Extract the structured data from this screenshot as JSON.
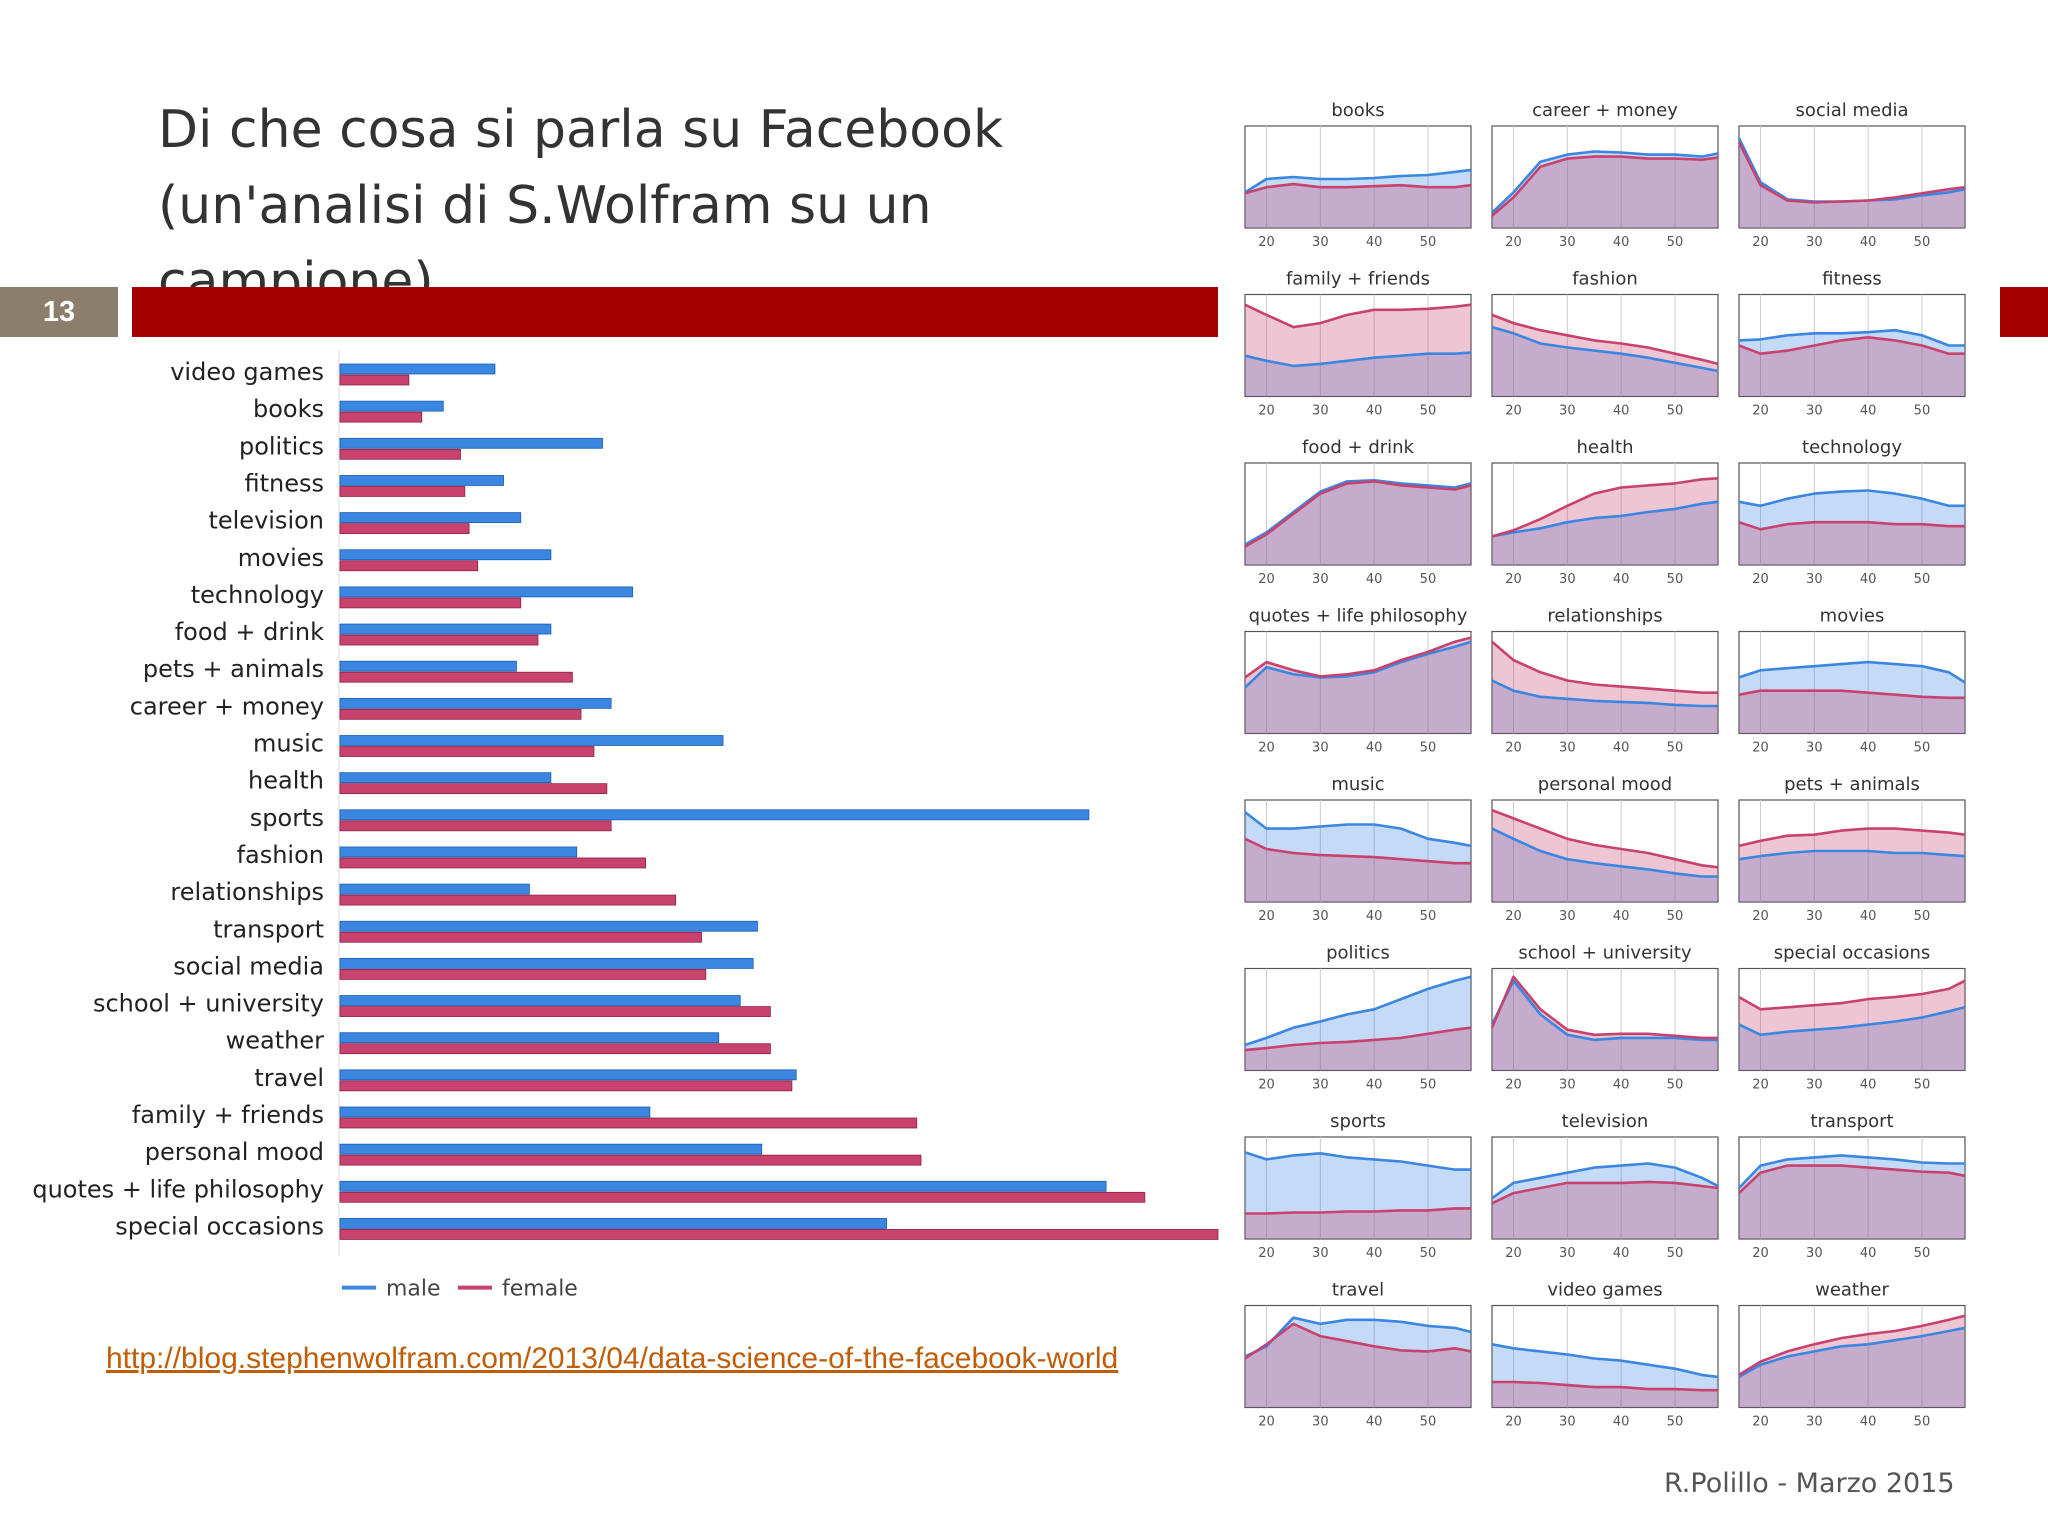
{
  "slide": {
    "title_line1": "Di che cosa si parla su Facebook",
    "title_line2": "(un'analisi di S.Wolfram su un campione)",
    "number": "13",
    "link": "http://blog.stephenwolfram.com/2013/04/data-science-of-the-facebook-world",
    "footer": "R.Polillo - Marzo 2015",
    "colors": {
      "male": "#3a86e0",
      "female": "#c8426e",
      "accent": "#a50000",
      "badge": "#8c7e6c"
    }
  },
  "chart_data": [
    {
      "type": "bar",
      "orientation": "horizontal",
      "categories": [
        "video games",
        "books",
        "politics",
        "fitness",
        "television",
        "movies",
        "technology",
        "food + drink",
        "pets + animals",
        "career + money",
        "music",
        "health",
        "sports",
        "fashion",
        "relationships",
        "transport",
        "social media",
        "school + university",
        "weather",
        "travel",
        "family + friends",
        "personal mood",
        "quotes + life philosophy",
        "special occasions"
      ],
      "series": [
        {
          "name": "male",
          "values": [
            18.0,
            12.0,
            30.5,
            19.0,
            21.0,
            24.5,
            34.0,
            24.5,
            20.5,
            31.5,
            44.5,
            24.5,
            87.0,
            27.5,
            22.0,
            48.5,
            48.0,
            46.5,
            44.0,
            53.0,
            36.0,
            49.0,
            89.0,
            63.5
          ]
        },
        {
          "name": "female",
          "values": [
            8.0,
            9.5,
            14.0,
            14.5,
            15.0,
            16.0,
            21.0,
            23.0,
            27.0,
            28.0,
            29.5,
            31.0,
            31.5,
            35.5,
            39.0,
            42.0,
            42.5,
            50.0,
            50.0,
            52.5,
            67.0,
            67.5,
            93.5,
            102.0
          ]
        }
      ],
      "xlim": [
        0,
        102
      ],
      "legend": "bottom-left"
    },
    {
      "type": "area",
      "layout": "small multiples 3 x 8",
      "x": [
        16,
        20,
        25,
        30,
        35,
        40,
        45,
        50,
        55,
        58
      ],
      "xticks": [
        20,
        30,
        40,
        50
      ],
      "panels": [
        {
          "title": "books",
          "male": [
            0.35,
            0.48,
            0.5,
            0.48,
            0.48,
            0.49,
            0.51,
            0.52,
            0.55,
            0.57
          ],
          "female": [
            0.34,
            0.4,
            0.43,
            0.4,
            0.4,
            0.41,
            0.42,
            0.4,
            0.4,
            0.42
          ]
        },
        {
          "title": "career + money",
          "male": [
            0.15,
            0.35,
            0.65,
            0.72,
            0.75,
            0.74,
            0.72,
            0.72,
            0.7,
            0.73
          ],
          "female": [
            0.12,
            0.3,
            0.6,
            0.68,
            0.7,
            0.7,
            0.68,
            0.68,
            0.67,
            0.69
          ]
        },
        {
          "title": "social media",
          "male": [
            0.88,
            0.45,
            0.28,
            0.26,
            0.26,
            0.27,
            0.28,
            0.32,
            0.35,
            0.38
          ],
          "female": [
            0.84,
            0.42,
            0.27,
            0.25,
            0.26,
            0.27,
            0.3,
            0.34,
            0.38,
            0.4
          ]
        },
        {
          "title": "family + friends",
          "male": [
            0.4,
            0.35,
            0.3,
            0.32,
            0.35,
            0.38,
            0.4,
            0.42,
            0.42,
            0.43
          ],
          "female": [
            0.9,
            0.8,
            0.68,
            0.72,
            0.8,
            0.85,
            0.85,
            0.86,
            0.88,
            0.9
          ]
        },
        {
          "title": "fashion",
          "male": [
            0.68,
            0.62,
            0.52,
            0.48,
            0.45,
            0.42,
            0.38,
            0.33,
            0.28,
            0.25
          ],
          "female": [
            0.8,
            0.72,
            0.65,
            0.6,
            0.55,
            0.52,
            0.48,
            0.42,
            0.36,
            0.32
          ]
        },
        {
          "title": "fitness",
          "male": [
            0.55,
            0.56,
            0.6,
            0.62,
            0.62,
            0.63,
            0.65,
            0.6,
            0.5,
            0.5
          ],
          "female": [
            0.5,
            0.42,
            0.45,
            0.5,
            0.55,
            0.58,
            0.55,
            0.5,
            0.42,
            0.42
          ]
        },
        {
          "title": "food + drink",
          "male": [
            0.2,
            0.32,
            0.52,
            0.72,
            0.82,
            0.83,
            0.8,
            0.78,
            0.76,
            0.8
          ],
          "female": [
            0.18,
            0.3,
            0.5,
            0.7,
            0.8,
            0.82,
            0.78,
            0.76,
            0.74,
            0.78
          ]
        },
        {
          "title": "health",
          "male": [
            0.28,
            0.32,
            0.36,
            0.42,
            0.46,
            0.48,
            0.52,
            0.55,
            0.6,
            0.62
          ],
          "female": [
            0.28,
            0.34,
            0.45,
            0.58,
            0.7,
            0.76,
            0.78,
            0.8,
            0.84,
            0.85
          ]
        },
        {
          "title": "technology",
          "male": [
            0.62,
            0.58,
            0.65,
            0.7,
            0.72,
            0.73,
            0.7,
            0.65,
            0.58,
            0.58
          ],
          "female": [
            0.42,
            0.35,
            0.4,
            0.42,
            0.42,
            0.42,
            0.4,
            0.4,
            0.38,
            0.38
          ]
        },
        {
          "title": "quotes + life philosophy",
          "male": [
            0.45,
            0.65,
            0.58,
            0.55,
            0.56,
            0.6,
            0.7,
            0.78,
            0.85,
            0.9
          ],
          "female": [
            0.55,
            0.7,
            0.62,
            0.56,
            0.58,
            0.62,
            0.72,
            0.8,
            0.9,
            0.94
          ]
        },
        {
          "title": "relationships",
          "male": [
            0.52,
            0.42,
            0.36,
            0.34,
            0.32,
            0.31,
            0.3,
            0.28,
            0.27,
            0.27
          ],
          "female": [
            0.9,
            0.72,
            0.6,
            0.52,
            0.48,
            0.46,
            0.44,
            0.42,
            0.4,
            0.4
          ]
        },
        {
          "title": "movies",
          "male": [
            0.55,
            0.62,
            0.64,
            0.66,
            0.68,
            0.7,
            0.68,
            0.66,
            0.6,
            0.5
          ],
          "female": [
            0.38,
            0.42,
            0.42,
            0.42,
            0.42,
            0.4,
            0.38,
            0.36,
            0.35,
            0.35
          ]
        },
        {
          "title": "music",
          "male": [
            0.88,
            0.72,
            0.72,
            0.74,
            0.76,
            0.76,
            0.72,
            0.62,
            0.58,
            0.55
          ],
          "female": [
            0.62,
            0.52,
            0.48,
            0.46,
            0.45,
            0.44,
            0.42,
            0.4,
            0.38,
            0.38
          ]
        },
        {
          "title": "personal mood",
          "male": [
            0.72,
            0.62,
            0.5,
            0.42,
            0.38,
            0.35,
            0.32,
            0.28,
            0.25,
            0.25
          ],
          "female": [
            0.9,
            0.82,
            0.72,
            0.62,
            0.56,
            0.52,
            0.48,
            0.42,
            0.36,
            0.34
          ]
        },
        {
          "title": "pets + animals",
          "male": [
            0.42,
            0.45,
            0.48,
            0.5,
            0.5,
            0.5,
            0.48,
            0.48,
            0.46,
            0.45
          ],
          "female": [
            0.55,
            0.6,
            0.65,
            0.66,
            0.7,
            0.72,
            0.72,
            0.7,
            0.68,
            0.66
          ]
        },
        {
          "title": "politics",
          "male": [
            0.25,
            0.32,
            0.42,
            0.48,
            0.55,
            0.6,
            0.7,
            0.8,
            0.88,
            0.92
          ],
          "female": [
            0.2,
            0.22,
            0.25,
            0.27,
            0.28,
            0.3,
            0.32,
            0.36,
            0.4,
            0.42
          ]
        },
        {
          "title": "school + university",
          "male": [
            0.45,
            0.88,
            0.55,
            0.35,
            0.3,
            0.32,
            0.32,
            0.32,
            0.3,
            0.3
          ],
          "female": [
            0.42,
            0.92,
            0.6,
            0.4,
            0.35,
            0.36,
            0.36,
            0.34,
            0.32,
            0.32
          ]
        },
        {
          "title": "special occasions",
          "male": [
            0.45,
            0.35,
            0.38,
            0.4,
            0.42,
            0.45,
            0.48,
            0.52,
            0.58,
            0.62
          ],
          "female": [
            0.72,
            0.6,
            0.62,
            0.64,
            0.66,
            0.7,
            0.72,
            0.75,
            0.8,
            0.88
          ]
        },
        {
          "title": "sports",
          "male": [
            0.85,
            0.78,
            0.82,
            0.84,
            0.8,
            0.78,
            0.76,
            0.72,
            0.68,
            0.68
          ],
          "female": [
            0.25,
            0.25,
            0.26,
            0.26,
            0.27,
            0.27,
            0.28,
            0.28,
            0.3,
            0.3
          ]
        },
        {
          "title": "television",
          "male": [
            0.4,
            0.55,
            0.6,
            0.65,
            0.7,
            0.72,
            0.74,
            0.7,
            0.6,
            0.52
          ],
          "female": [
            0.35,
            0.45,
            0.5,
            0.55,
            0.55,
            0.55,
            0.56,
            0.55,
            0.52,
            0.5
          ]
        },
        {
          "title": "transport",
          "male": [
            0.5,
            0.72,
            0.78,
            0.8,
            0.82,
            0.8,
            0.78,
            0.75,
            0.74,
            0.74
          ],
          "female": [
            0.45,
            0.65,
            0.72,
            0.72,
            0.72,
            0.7,
            0.68,
            0.66,
            0.65,
            0.62
          ]
        },
        {
          "title": "travel",
          "male": [
            0.5,
            0.6,
            0.88,
            0.82,
            0.86,
            0.86,
            0.84,
            0.8,
            0.78,
            0.74
          ],
          "female": [
            0.48,
            0.62,
            0.82,
            0.7,
            0.65,
            0.6,
            0.56,
            0.55,
            0.58,
            0.55
          ]
        },
        {
          "title": "video games",
          "male": [
            0.62,
            0.58,
            0.55,
            0.52,
            0.48,
            0.46,
            0.42,
            0.38,
            0.32,
            0.3
          ],
          "female": [
            0.25,
            0.25,
            0.24,
            0.22,
            0.2,
            0.2,
            0.18,
            0.18,
            0.17,
            0.17
          ]
        },
        {
          "title": "weather",
          "male": [
            0.3,
            0.42,
            0.5,
            0.55,
            0.6,
            0.62,
            0.66,
            0.7,
            0.75,
            0.78
          ],
          "female": [
            0.32,
            0.45,
            0.55,
            0.62,
            0.68,
            0.72,
            0.75,
            0.8,
            0.86,
            0.9
          ]
        }
      ]
    }
  ]
}
